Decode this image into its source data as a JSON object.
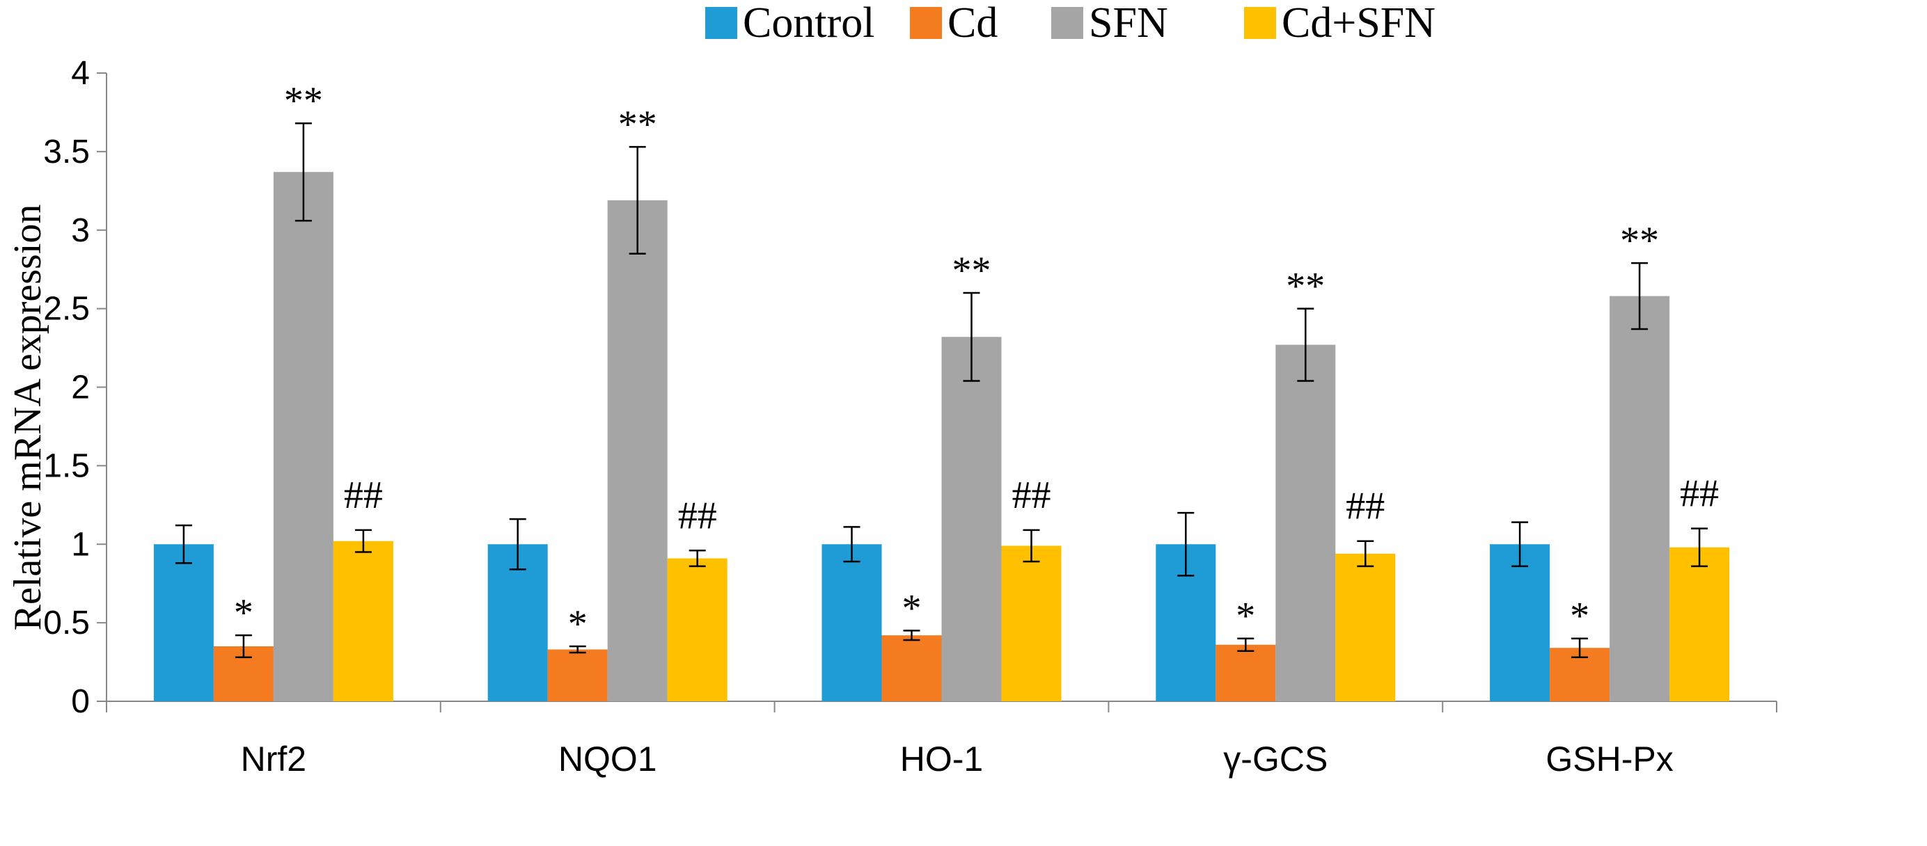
{
  "chart_data": {
    "type": "bar",
    "title": "",
    "xlabel": "",
    "ylabel": "Relative  mRNA expression",
    "ylim": [
      0,
      4
    ],
    "yticks": [
      0,
      0.5,
      1,
      1.5,
      2,
      2.5,
      3,
      3.5,
      4
    ],
    "ytick_labels": [
      "0",
      "0.5",
      "1",
      "1.5",
      "2",
      "2.5",
      "3",
      "3.5",
      "4"
    ],
    "legend_position": "top",
    "grid": false,
    "categories": [
      "Nrf2",
      "NQO1",
      "HO-1",
      "γ-GCS",
      "GSH-Px"
    ],
    "series": [
      {
        "name": "Control",
        "color": "#1F9BD6",
        "values": [
          1.0,
          1.0,
          1.0,
          1.0,
          1.0
        ],
        "errors": [
          0.12,
          0.16,
          0.11,
          0.2,
          0.14
        ],
        "annotations": [
          "",
          "",
          "",
          "",
          ""
        ]
      },
      {
        "name": "Cd",
        "color": "#F47B20",
        "values": [
          0.35,
          0.33,
          0.42,
          0.36,
          0.34
        ],
        "errors": [
          0.07,
          0.02,
          0.03,
          0.04,
          0.06
        ],
        "annotations": [
          "*",
          "*",
          "*",
          "*",
          "*"
        ]
      },
      {
        "name": "SFN",
        "color": "#A5A5A5",
        "values": [
          3.37,
          3.19,
          2.32,
          2.27,
          2.58
        ],
        "errors": [
          0.31,
          0.34,
          0.28,
          0.23,
          0.21
        ],
        "annotations": [
          "**",
          "**",
          "**",
          "**",
          "**"
        ]
      },
      {
        "name": "Cd+SFN",
        "color": "#FFC000",
        "values": [
          1.02,
          0.91,
          0.99,
          0.94,
          0.98
        ],
        "errors": [
          0.07,
          0.05,
          0.1,
          0.08,
          0.12
        ],
        "annotations": [
          "##",
          "##",
          "##",
          "##",
          "##"
        ]
      }
    ]
  }
}
